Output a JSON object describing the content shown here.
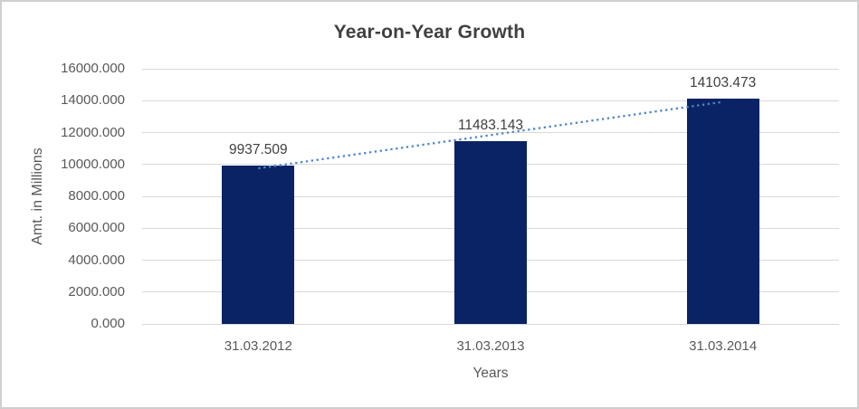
{
  "chart_data": {
    "type": "bar",
    "title": "Year-on-Year Growth",
    "xlabel": "Years",
    "ylabel": "Amt. in Millions",
    "categories": [
      "31.03.2012",
      "31.03.2013",
      "31.03.2014"
    ],
    "values": [
      9937.509,
      11483.143,
      14103.473
    ],
    "data_labels": [
      "9937.509",
      "11483.143",
      "14103.473"
    ],
    "y_ticks": [
      "0.000",
      "2000.000",
      "4000.000",
      "6000.000",
      "8000.000",
      "10000.000",
      "12000.000",
      "14000.000",
      "16000.000"
    ],
    "ylim": [
      0,
      16000
    ],
    "y_tick_step": 2000,
    "grid": true,
    "legend": "none",
    "trendline": {
      "type": "linear",
      "style": "dotted"
    },
    "colors": {
      "bar": "#0A2364",
      "trend": "#4E87C9",
      "gridline": "#D9D9D9",
      "canvas_border": "#D0CECE",
      "title_text": "#404040",
      "data_label_text": "#404040",
      "tick_text": "#595959"
    }
  }
}
